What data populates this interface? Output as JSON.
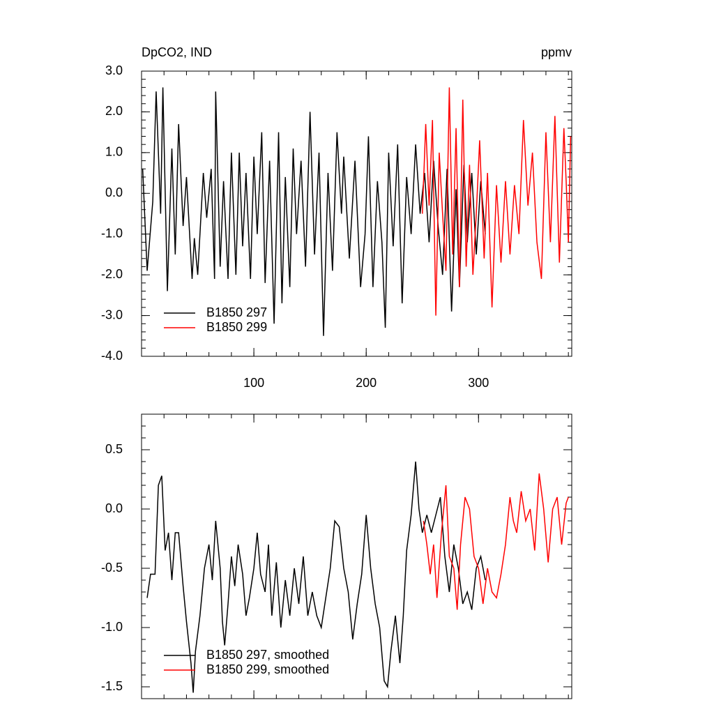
{
  "chart_data": [
    {
      "type": "line",
      "title": "DpCO2, IND",
      "units": "ppmv",
      "xlim": [
        0,
        383
      ],
      "xticks": [
        100,
        200,
        300
      ],
      "show_xtick_labels": true,
      "ylim": [
        -4,
        3
      ],
      "yticks": [
        {
          "value": -4,
          "label": "-4.0"
        },
        {
          "value": -3,
          "label": "-3.0"
        },
        {
          "value": -2,
          "label": "-2.0"
        },
        {
          "value": -1,
          "label": "-1.0"
        },
        {
          "value": 0,
          "label": "0.0"
        },
        {
          "value": 1,
          "label": "1.0"
        },
        {
          "value": 2,
          "label": "2.0"
        },
        {
          "value": 3,
          "label": "3.0"
        }
      ],
      "legend": "lower left",
      "series": [
        {
          "name": "B1850 297",
          "color": "#000000",
          "x": [
            1,
            5,
            10,
            13,
            17,
            19,
            23,
            27,
            30,
            33,
            37,
            40,
            45,
            47,
            50,
            55,
            58,
            62,
            65,
            66,
            70,
            73,
            77,
            80,
            84,
            87,
            90,
            93,
            97,
            100,
            103,
            107,
            110,
            114,
            118,
            120,
            122,
            125,
            128,
            132,
            135,
            138,
            142,
            146,
            150,
            154,
            158,
            162,
            166,
            170,
            174,
            178,
            180,
            185,
            190,
            195,
            199,
            202,
            206,
            210,
            214,
            217,
            220,
            224,
            228,
            232,
            236,
            240,
            244,
            248,
            252,
            256,
            260,
            264,
            268,
            272,
            276,
            280,
            283,
            287,
            290,
            294,
            298,
            302,
            306
          ],
          "values": [
            0.6,
            -1.9,
            -0.2,
            2.5,
            -0.5,
            2.6,
            -2.4,
            1.1,
            -1.5,
            1.7,
            -0.8,
            0.4,
            -2.1,
            -1.1,
            -2.0,
            0.5,
            -0.6,
            0.6,
            -2.1,
            2.5,
            -1.8,
            0.3,
            -2.1,
            1.0,
            -2.0,
            1.0,
            -1.3,
            0.5,
            -2.1,
            0.9,
            -1.0,
            1.5,
            -2.2,
            0.8,
            -3.2,
            -0.9,
            1.5,
            -2.7,
            0.4,
            -2.3,
            1.1,
            -1.0,
            0.8,
            -1.8,
            2.0,
            -1.5,
            1.0,
            -3.5,
            0.5,
            -1.9,
            1.5,
            -0.5,
            0.9,
            -1.6,
            0.8,
            -2.3,
            -1.0,
            1.4,
            -2.3,
            0.3,
            -1.2,
            -3.3,
            1.0,
            -1.3,
            1.2,
            -2.7,
            0.4,
            -1.0,
            1.2,
            -0.5,
            0.5,
            -1.2,
            0.8,
            -0.8,
            -2.0,
            0.6,
            -2.9,
            0.1,
            -2.3,
            0.7,
            -1.2,
            0.5,
            -1.5,
            0.3,
            -1.0
          ]
        },
        {
          "name": "B1850 299",
          "color": "#ff0000",
          "x": [
            250,
            253,
            256,
            259,
            262,
            265,
            268,
            271,
            274,
            277,
            280,
            283,
            286,
            289,
            292,
            295,
            298,
            301,
            305,
            308,
            312,
            316,
            320,
            324,
            328,
            332,
            336,
            340,
            344,
            348,
            352,
            356,
            360,
            364,
            368,
            372,
            376,
            378,
            380,
            382
          ],
          "values": [
            -0.5,
            1.7,
            -0.3,
            1.8,
            -3.0,
            1.0,
            -0.5,
            -1.9,
            2.6,
            -1.5,
            1.6,
            -2.3,
            2.3,
            -1.8,
            0.7,
            -2.0,
            -0.5,
            1.3,
            -1.6,
            0.5,
            -2.8,
            0.2,
            -1.7,
            0.3,
            -1.5,
            0.2,
            -1.0,
            1.8,
            -0.3,
            1.0,
            -1.2,
            -2.1,
            1.5,
            -1.2,
            1.9,
            -1.7,
            1.6,
            0.3,
            -1.2,
            1.4
          ]
        }
      ]
    },
    {
      "type": "line",
      "xlim": [
        0,
        383
      ],
      "xticks": [
        100,
        200,
        300
      ],
      "show_xtick_labels": false,
      "ylim": [
        -1.6,
        0.8
      ],
      "yticks": [
        -1.5,
        {
          "value": -1,
          "label": "-1.0"
        },
        -0.5,
        {
          "value": 0,
          "label": "0.0"
        },
        0.5
      ],
      "legend": "lower left",
      "series": [
        {
          "name": "B1850 297, smoothed",
          "color": "#000000",
          "x": [
            5,
            8,
            12,
            15,
            18,
            21,
            24,
            27,
            30,
            33,
            37,
            40,
            44,
            46,
            48,
            52,
            56,
            60,
            63,
            66,
            70,
            72,
            74,
            77,
            80,
            83,
            86,
            90,
            93,
            96,
            100,
            103,
            106,
            110,
            113,
            116,
            120,
            124,
            128,
            132,
            136,
            140,
            144,
            148,
            152,
            156,
            160,
            164,
            168,
            172,
            176,
            180,
            184,
            188,
            192,
            196,
            200,
            204,
            208,
            212,
            216,
            219,
            222,
            226,
            230,
            233,
            236,
            240,
            244,
            247,
            250,
            254,
            258,
            262,
            266,
            270,
            274,
            278,
            282,
            286,
            290,
            294,
            298,
            302,
            306
          ],
          "values": [
            -0.75,
            -0.55,
            -0.55,
            0.2,
            0.28,
            -0.35,
            -0.2,
            -0.6,
            -0.2,
            -0.2,
            -0.65,
            -0.95,
            -1.3,
            -1.55,
            -1.2,
            -0.9,
            -0.5,
            -0.3,
            -0.6,
            -0.1,
            -0.5,
            -0.95,
            -1.15,
            -0.8,
            -0.4,
            -0.65,
            -0.3,
            -0.55,
            -0.9,
            -0.75,
            -0.5,
            -0.2,
            -0.55,
            -0.7,
            -0.3,
            -0.9,
            -0.45,
            -1.0,
            -0.6,
            -0.9,
            -0.5,
            -0.8,
            -0.4,
            -0.9,
            -0.7,
            -0.9,
            -1.0,
            -0.75,
            -0.5,
            -0.1,
            -0.15,
            -0.5,
            -0.7,
            -1.1,
            -0.8,
            -0.55,
            -0.05,
            -0.5,
            -0.8,
            -1.0,
            -1.45,
            -1.5,
            -1.2,
            -0.9,
            -1.3,
            -0.9,
            -0.35,
            -0.05,
            0.4,
            0.0,
            -0.2,
            -0.05,
            -0.2,
            -0.05,
            0.1,
            -0.4,
            -0.7,
            -0.3,
            -0.5,
            -0.8,
            -0.7,
            -0.85,
            -0.5,
            -0.4,
            -0.6
          ]
        },
        {
          "name": "B1850 299, smoothed",
          "color": "#ff0000",
          "x": [
            251,
            254,
            257,
            260,
            263,
            267,
            271,
            274,
            278,
            281,
            284,
            288,
            292,
            296,
            300,
            304,
            308,
            312,
            316,
            320,
            324,
            328,
            331,
            334,
            338,
            342,
            346,
            350,
            354,
            358,
            362,
            366,
            370,
            374,
            378,
            380
          ],
          "values": [
            -0.1,
            -0.3,
            -0.55,
            -0.3,
            -0.75,
            -0.2,
            0.2,
            -0.4,
            -0.5,
            -0.85,
            -0.3,
            0.1,
            0.0,
            -0.4,
            -0.5,
            -0.8,
            -0.5,
            -0.7,
            -0.75,
            -0.55,
            -0.3,
            0.1,
            -0.1,
            -0.2,
            0.15,
            -0.1,
            0.0,
            -0.35,
            0.3,
            0.0,
            -0.45,
            0.0,
            0.1,
            -0.3,
            0.05,
            0.1
          ]
        }
      ]
    }
  ]
}
